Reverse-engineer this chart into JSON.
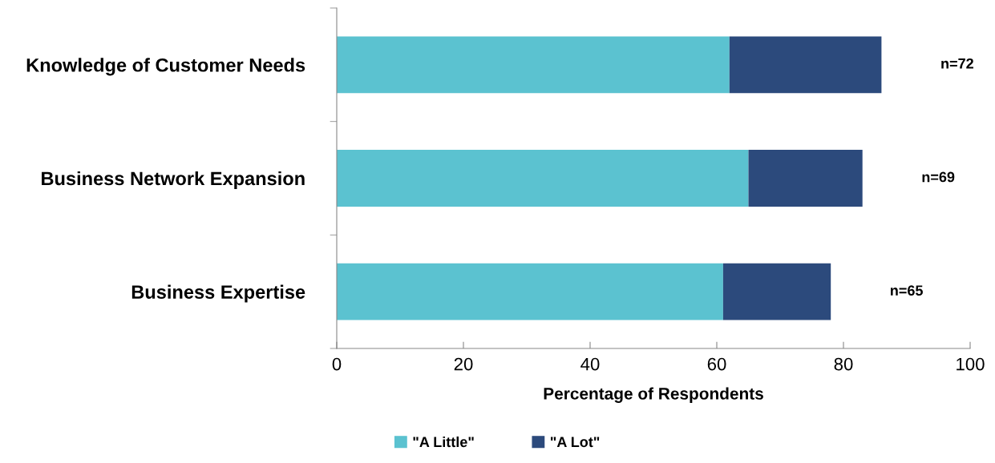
{
  "chart_data": {
    "type": "bar",
    "orientation": "horizontal",
    "stacked": true,
    "categories": [
      "Knowledge of Customer Needs",
      "Business Network Expansion",
      "Business Expertise"
    ],
    "series": [
      {
        "name": "\"A Little\"",
        "color": "#5bc2d0",
        "values": [
          62,
          65,
          61
        ]
      },
      {
        "name": "\"A Lot\"",
        "color": "#2c4a7c",
        "values": [
          24,
          18,
          17
        ]
      }
    ],
    "xlabel": "Percentage of Respondents",
    "xlim": [
      0,
      100
    ],
    "xticks": [
      0,
      20,
      40,
      60,
      80,
      100
    ],
    "grid": false,
    "legend": "bottom",
    "annotations": [
      "n=72",
      "n=69",
      "n=65"
    ]
  }
}
